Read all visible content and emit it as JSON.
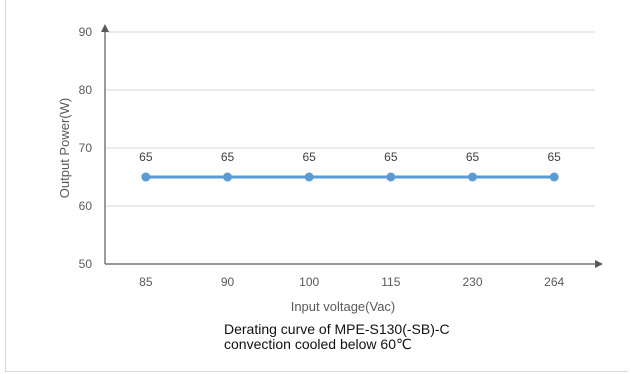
{
  "chart_data": {
    "type": "line",
    "categories": [
      "85",
      "90",
      "100",
      "115",
      "230",
      "264"
    ],
    "series": [
      {
        "values": [
          65,
          65,
          65,
          65,
          65,
          65
        ]
      }
    ],
    "data_labels": [
      "65",
      "65",
      "65",
      "65",
      "65",
      "65"
    ],
    "xlabel": "Input voltage(Vac)",
    "ylabel": "Output Power(W)",
    "ylim": [
      50,
      90
    ],
    "yticks": [
      50,
      60,
      70,
      80,
      90
    ],
    "grid": "horizontal",
    "colors": {
      "line": "#5b9bd5",
      "grid": "#d9d9d9",
      "axis": "#595959"
    }
  },
  "caption": {
    "line1": "Derating curve of MPE-S130(-SB)-C",
    "line2": "convection cooled below 60℃"
  }
}
